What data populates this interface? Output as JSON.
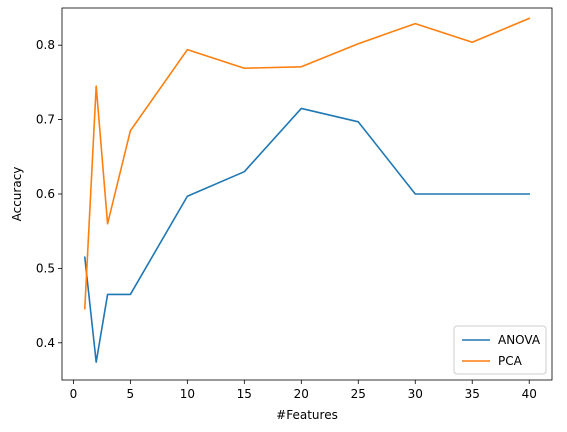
{
  "chart_data": {
    "type": "line",
    "title": "",
    "xlabel": "#Features",
    "ylabel": "Accuracy",
    "xlim": [
      -1,
      42
    ],
    "ylim": [
      0.35,
      0.85
    ],
    "xticks": [
      0,
      5,
      10,
      15,
      20,
      25,
      30,
      35,
      40
    ],
    "yticks": [
      0.4,
      0.5,
      0.6,
      0.7,
      0.8
    ],
    "grid": false,
    "legend_position": "lower-right",
    "x": [
      1,
      2,
      3,
      5,
      10,
      15,
      20,
      25,
      30,
      35,
      40
    ],
    "series": [
      {
        "name": "ANOVA",
        "color": "#1f77b4",
        "values": [
          0.515,
          0.374,
          0.465,
          0.465,
          0.597,
          0.63,
          0.715,
          0.697,
          0.6,
          0.6,
          0.6
        ]
      },
      {
        "name": "PCA",
        "color": "#ff7f0e",
        "values": [
          0.446,
          0.745,
          0.56,
          0.685,
          0.794,
          0.769,
          0.771,
          0.802,
          0.829,
          0.804,
          0.836
        ]
      }
    ]
  }
}
